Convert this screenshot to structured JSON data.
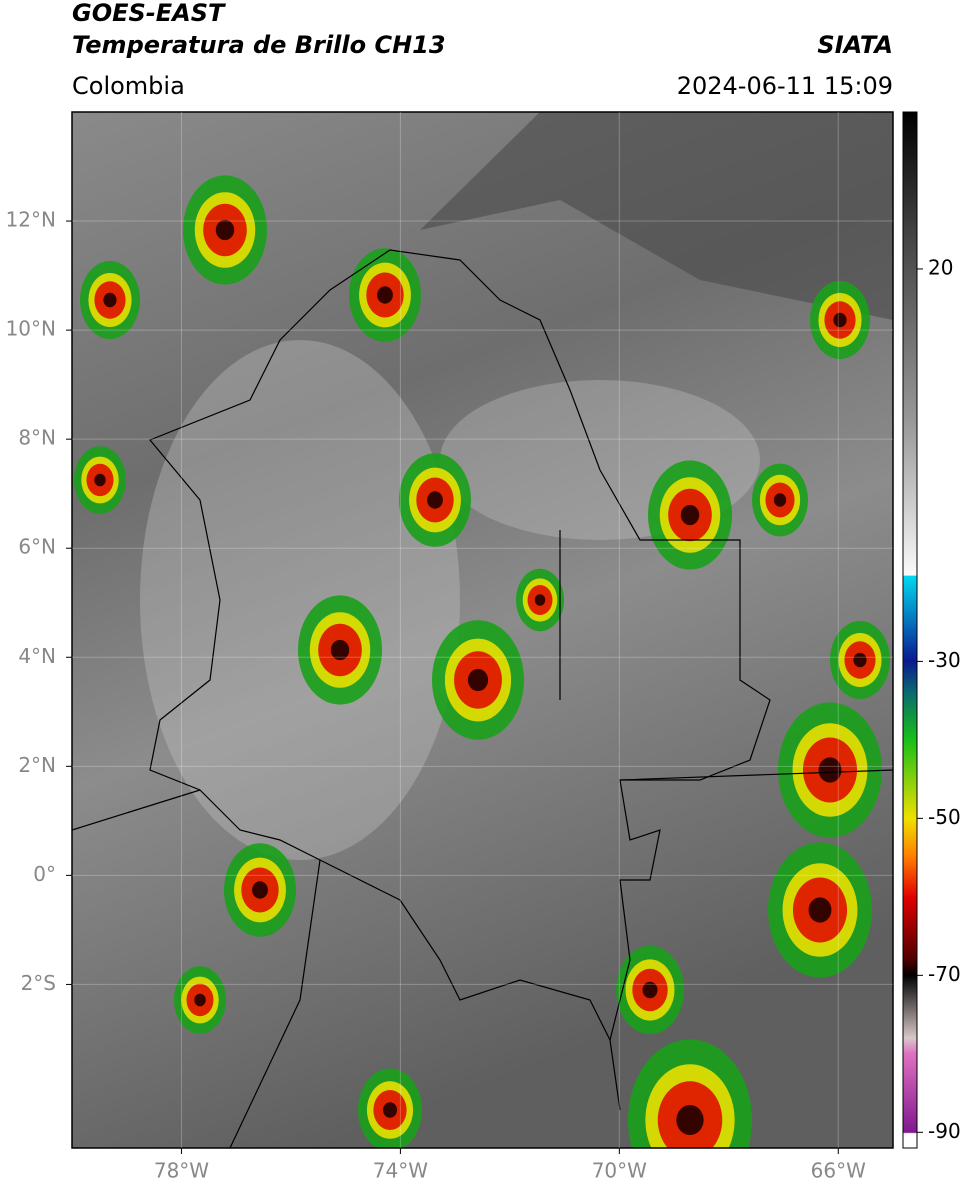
{
  "header": {
    "title": "GOES-EAST",
    "subtitle": "Temperatura de Brillo CH13",
    "brand": "SIATA",
    "region": "Colombia",
    "timestamp": "2024-06-11 15:09"
  },
  "map": {
    "xlim": [
      -80,
      -65
    ],
    "ylim": [
      -5,
      14
    ],
    "xticks": [
      {
        "value": -78,
        "label": "78°W"
      },
      {
        "value": -74,
        "label": "74°W"
      },
      {
        "value": -70,
        "label": "70°W"
      },
      {
        "value": -66,
        "label": "66°W"
      }
    ],
    "yticks": [
      {
        "value": 12,
        "label": "12°N"
      },
      {
        "value": 10,
        "label": "10°N"
      },
      {
        "value": 8,
        "label": "8°N"
      },
      {
        "value": 6,
        "label": "6°N"
      },
      {
        "value": 4,
        "label": "4°N"
      },
      {
        "value": 2,
        "label": "2°N"
      },
      {
        "value": 0,
        "label": "0°"
      },
      {
        "value": -2,
        "label": "2°S"
      }
    ]
  },
  "colorbar": {
    "lim": [
      -92,
      40
    ],
    "ticks": [
      20,
      -30,
      -50,
      -70,
      -90
    ]
  }
}
